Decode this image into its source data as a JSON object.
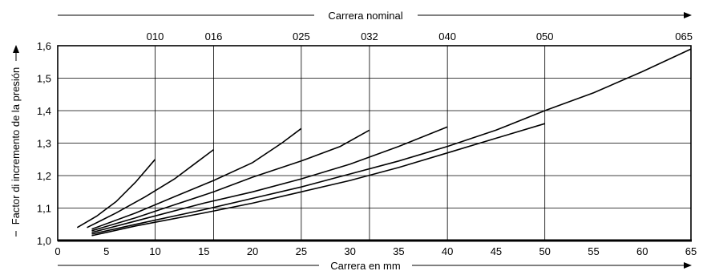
{
  "chart_data": {
    "type": "line",
    "title": "",
    "xlabel": "Carrera en mm",
    "ylabel": "Factor di incremento de la presión",
    "top_axis_label": "Carrera nominal",
    "xlim": [
      0,
      65
    ],
    "ylim": [
      1.0,
      1.6
    ],
    "x_ticks": [
      0,
      5,
      10,
      15,
      20,
      25,
      30,
      35,
      40,
      45,
      50,
      55,
      60,
      65
    ],
    "y_ticks": [
      "1,0",
      "1,1",
      "1,2",
      "1,3",
      "1,4",
      "1,5",
      "1,6"
    ],
    "nominal_strokes": [
      {
        "label": "010",
        "x": 10
      },
      {
        "label": "016",
        "x": 16
      },
      {
        "label": "025",
        "x": 25
      },
      {
        "label": "032",
        "x": 32
      },
      {
        "label": "040",
        "x": 40
      },
      {
        "label": "050",
        "x": 50
      },
      {
        "label": "065",
        "x": 65
      }
    ],
    "grid": true,
    "series": [
      {
        "values": [
          [
            2,
            1.04
          ],
          [
            4,
            1.075
          ],
          [
            6,
            1.12
          ],
          [
            8,
            1.18
          ],
          [
            10,
            1.25
          ]
        ]
      },
      {
        "values": [
          [
            3,
            1.04
          ],
          [
            6,
            1.085
          ],
          [
            9,
            1.135
          ],
          [
            12,
            1.19
          ],
          [
            14,
            1.235
          ],
          [
            16,
            1.28
          ]
        ]
      },
      {
        "values": [
          [
            3.5,
            1.035
          ],
          [
            8,
            1.085
          ],
          [
            12,
            1.135
          ],
          [
            16,
            1.185
          ],
          [
            20,
            1.24
          ],
          [
            23,
            1.3
          ],
          [
            25,
            1.345
          ]
        ]
      },
      {
        "values": [
          [
            3.5,
            1.03
          ],
          [
            8,
            1.07
          ],
          [
            12,
            1.11
          ],
          [
            16,
            1.15
          ],
          [
            20,
            1.195
          ],
          [
            25,
            1.245
          ],
          [
            29,
            1.29
          ],
          [
            32,
            1.34
          ]
        ]
      },
      {
        "values": [
          [
            3.5,
            1.025
          ],
          [
            8,
            1.06
          ],
          [
            15,
            1.115
          ],
          [
            20,
            1.15
          ],
          [
            25,
            1.19
          ],
          [
            30,
            1.235
          ],
          [
            35,
            1.29
          ],
          [
            40,
            1.35
          ]
        ]
      },
      {
        "values": [
          [
            3.5,
            1.02
          ],
          [
            8,
            1.05
          ],
          [
            15,
            1.095
          ],
          [
            20,
            1.13
          ],
          [
            25,
            1.165
          ],
          [
            30,
            1.205
          ],
          [
            35,
            1.245
          ],
          [
            40,
            1.29
          ],
          [
            45,
            1.34
          ],
          [
            50,
            1.4
          ],
          [
            55,
            1.455
          ],
          [
            60,
            1.52
          ],
          [
            65,
            1.59
          ]
        ]
      },
      {
        "values": [
          [
            3.5,
            1.015
          ],
          [
            8,
            1.045
          ],
          [
            15,
            1.085
          ],
          [
            20,
            1.115
          ],
          [
            25,
            1.15
          ],
          [
            30,
            1.185
          ],
          [
            35,
            1.225
          ],
          [
            40,
            1.27
          ],
          [
            45,
            1.315
          ],
          [
            50,
            1.36
          ]
        ]
      }
    ]
  }
}
